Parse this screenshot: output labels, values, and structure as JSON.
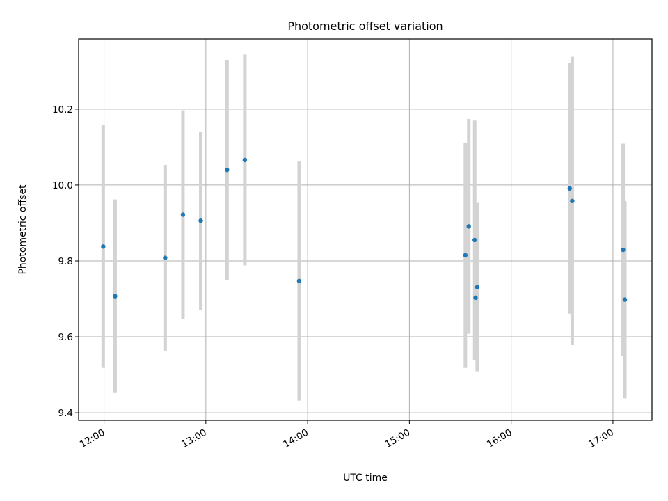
{
  "chart_data": {
    "type": "scatter",
    "title": "Photometric offset variation",
    "xlabel": "UTC time",
    "ylabel": "Photometric offset",
    "grid": true,
    "xlim": [
      "11:45",
      "17:23"
    ],
    "ylim": [
      9.38,
      10.385
    ],
    "x_ticks": [
      "12:00",
      "13:00",
      "14:00",
      "15:00",
      "16:00",
      "17:00"
    ],
    "y_ticks": [
      "9.4",
      "9.6",
      "9.8",
      "10.0",
      "10.2"
    ],
    "colors": {
      "marker": "#1f77b4",
      "errorbar": "#d3d3d3",
      "grid": "#b0b0b0"
    },
    "series": [
      {
        "points": [
          {
            "x": "11:59:30",
            "y": 9.838,
            "err": 0.32
          },
          {
            "x": "12:06:30",
            "y": 9.707,
            "err": 0.255
          },
          {
            "x": "12:36:00",
            "y": 9.808,
            "err": 0.245
          },
          {
            "x": "12:46:30",
            "y": 9.922,
            "err": 0.275
          },
          {
            "x": "12:57:00",
            "y": 9.906,
            "err": 0.235
          },
          {
            "x": "13:12:30",
            "y": 10.04,
            "err": 0.29
          },
          {
            "x": "13:23:00",
            "y": 10.066,
            "err": 0.278
          },
          {
            "x": "13:55:00",
            "y": 9.747,
            "err": 0.315
          },
          {
            "x": "15:33:00",
            "y": 9.815,
            "err": 0.297
          },
          {
            "x": "15:35:00",
            "y": 9.891,
            "err": 0.283
          },
          {
            "x": "15:38:30",
            "y": 9.855,
            "err": 0.315
          },
          {
            "x": "15:39:00",
            "y": 9.703,
            "err": 0.165
          },
          {
            "x": "15:40:00",
            "y": 9.731,
            "err": 0.222
          },
          {
            "x": "16:34:30",
            "y": 9.991,
            "err": 0.33
          },
          {
            "x": "16:36:00",
            "y": 9.958,
            "err": 0.38
          },
          {
            "x": "17:06:00",
            "y": 9.829,
            "err": 0.28
          },
          {
            "x": "17:07:00",
            "y": 9.698,
            "err": 0.26
          }
        ]
      }
    ]
  }
}
